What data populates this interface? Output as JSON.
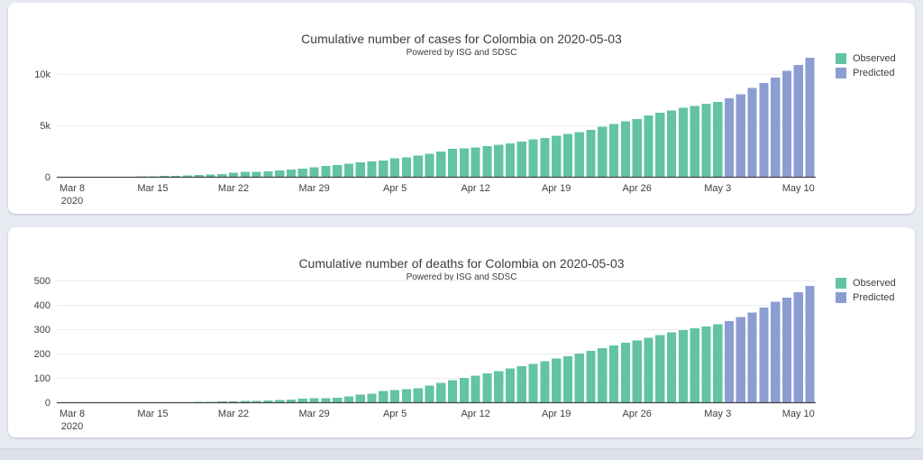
{
  "page_background": "#e7eaf1",
  "panel_background": "#ffffff",
  "colors": {
    "observed": "#62c4a0",
    "predicted": "#8c9dd2",
    "axis_line": "#444444",
    "gridline": "#ebecf0",
    "text": "#3d3d3d"
  },
  "chart_data": [
    {
      "type": "bar",
      "title": "Cumulative number of cases for Colombia on 2020-05-03",
      "subtitle": "Powered by ISG and SDSC",
      "xlabel": "",
      "ylabel": "",
      "ylim": [
        0,
        12000
      ],
      "grid": true,
      "legend_position": "top-right",
      "y_ticks": [
        {
          "label": "0",
          "value": 0
        },
        {
          "label": "5k",
          "value": 5000
        },
        {
          "label": "10k",
          "value": 10000
        }
      ],
      "x_ticks": [
        {
          "label": "Mar 8",
          "sub": "2020",
          "day": 0
        },
        {
          "label": "Mar 15",
          "day": 7
        },
        {
          "label": "Mar 22",
          "day": 14
        },
        {
          "label": "Mar 29",
          "day": 21
        },
        {
          "label": "Apr 5",
          "day": 28
        },
        {
          "label": "Apr 12",
          "day": 35
        },
        {
          "label": "Apr 19",
          "day": 42
        },
        {
          "label": "Apr 26",
          "day": 49
        },
        {
          "label": "May 3",
          "day": 56
        },
        {
          "label": "May 10",
          "day": 63
        }
      ],
      "series": [
        {
          "name": "Observed",
          "color": "#62c4a0",
          "start_date": "2020-03-08",
          "end_date": "2020-05-03",
          "dates": [
            "2020-03-08",
            "2020-03-09",
            "2020-03-10",
            "2020-03-11",
            "2020-03-12",
            "2020-03-13",
            "2020-03-14",
            "2020-03-15",
            "2020-03-16",
            "2020-03-17",
            "2020-03-18",
            "2020-03-19",
            "2020-03-20",
            "2020-03-21",
            "2020-03-22",
            "2020-03-23",
            "2020-03-24",
            "2020-03-25",
            "2020-03-26",
            "2020-03-27",
            "2020-03-28",
            "2020-03-29",
            "2020-03-30",
            "2020-03-31",
            "2020-04-01",
            "2020-04-02",
            "2020-04-03",
            "2020-04-04",
            "2020-04-05",
            "2020-04-06",
            "2020-04-07",
            "2020-04-08",
            "2020-04-09",
            "2020-04-10",
            "2020-04-11",
            "2020-04-12",
            "2020-04-13",
            "2020-04-14",
            "2020-04-15",
            "2020-04-16",
            "2020-04-17",
            "2020-04-18",
            "2020-04-19",
            "2020-04-20",
            "2020-04-21",
            "2020-04-22",
            "2020-04-23",
            "2020-04-24",
            "2020-04-25",
            "2020-04-26",
            "2020-04-27",
            "2020-04-28",
            "2020-04-29",
            "2020-04-30",
            "2020-05-01",
            "2020-05-02",
            "2020-05-03"
          ],
          "values": [
            1,
            3,
            9,
            13,
            22,
            34,
            54,
            65,
            93,
            102,
            128,
            196,
            231,
            277,
            378,
            470,
            491,
            539,
            608,
            702,
            798,
            906,
            1065,
            1161,
            1267,
            1406,
            1485,
            1579,
            1780,
            1871,
            2054,
            2223,
            2473,
            2709,
            2776,
            2852,
            2979,
            3105,
            3233,
            3439,
            3621,
            3792,
            3977,
            4149,
            4356,
            4561,
            4881,
            5142,
            5379,
            5597,
            5949,
            6211,
            6465,
            6710,
            6900,
            7090,
            7285
          ]
        },
        {
          "name": "Predicted",
          "color": "#8c9dd2",
          "start_date": "2020-05-04",
          "end_date": "2020-05-11",
          "dates": [
            "2020-05-04",
            "2020-05-05",
            "2020-05-06",
            "2020-05-07",
            "2020-05-08",
            "2020-05-09",
            "2020-05-10",
            "2020-05-11"
          ],
          "values": [
            7650,
            8040,
            8650,
            9140,
            9630,
            10310,
            10890,
            11560
          ]
        }
      ]
    },
    {
      "type": "bar",
      "title": "Cumulative number of deaths for Colombia on 2020-05-03",
      "subtitle": "Powered by ISG and SDSC",
      "xlabel": "",
      "ylabel": "",
      "ylim": [
        0,
        500
      ],
      "grid": true,
      "legend_position": "top-right",
      "y_ticks": [
        {
          "label": "0",
          "value": 0
        },
        {
          "label": "100",
          "value": 100
        },
        {
          "label": "200",
          "value": 200
        },
        {
          "label": "300",
          "value": 300
        },
        {
          "label": "400",
          "value": 400
        },
        {
          "label": "500",
          "value": 500
        }
      ],
      "x_ticks": [
        {
          "label": "Mar 8",
          "sub": "2020",
          "day": 0
        },
        {
          "label": "Mar 15",
          "day": 7
        },
        {
          "label": "Mar 22",
          "day": 14
        },
        {
          "label": "Mar 29",
          "day": 21
        },
        {
          "label": "Apr 5",
          "day": 28
        },
        {
          "label": "Apr 12",
          "day": 35
        },
        {
          "label": "Apr 19",
          "day": 42
        },
        {
          "label": "Apr 26",
          "day": 49
        },
        {
          "label": "May 3",
          "day": 56
        },
        {
          "label": "May 10",
          "day": 63
        }
      ],
      "series": [
        {
          "name": "Observed",
          "color": "#62c4a0",
          "start_date": "2020-03-08",
          "end_date": "2020-05-03",
          "dates": [
            "2020-03-08",
            "2020-03-09",
            "2020-03-10",
            "2020-03-11",
            "2020-03-12",
            "2020-03-13",
            "2020-03-14",
            "2020-03-15",
            "2020-03-16",
            "2020-03-17",
            "2020-03-18",
            "2020-03-19",
            "2020-03-20",
            "2020-03-21",
            "2020-03-22",
            "2020-03-23",
            "2020-03-24",
            "2020-03-25",
            "2020-03-26",
            "2020-03-27",
            "2020-03-28",
            "2020-03-29",
            "2020-03-30",
            "2020-03-31",
            "2020-04-01",
            "2020-04-02",
            "2020-04-03",
            "2020-04-04",
            "2020-04-05",
            "2020-04-06",
            "2020-04-07",
            "2020-04-08",
            "2020-04-09",
            "2020-04-10",
            "2020-04-11",
            "2020-04-12",
            "2020-04-13",
            "2020-04-14",
            "2020-04-15",
            "2020-04-16",
            "2020-04-17",
            "2020-04-18",
            "2020-04-19",
            "2020-04-20",
            "2020-04-21",
            "2020-04-22",
            "2020-04-23",
            "2020-04-24",
            "2020-04-25",
            "2020-04-26",
            "2020-04-27",
            "2020-04-28",
            "2020-04-29",
            "2020-04-30",
            "2020-05-01",
            "2020-05-02",
            "2020-05-03"
          ],
          "values": [
            0,
            0,
            0,
            0,
            0,
            0,
            0,
            0,
            1,
            1,
            1,
            2,
            2,
            3,
            4,
            5,
            6,
            7,
            10,
            12,
            14,
            16,
            17,
            19,
            25,
            32,
            35,
            46,
            50,
            54,
            57,
            69,
            80,
            90,
            100,
            109,
            119,
            127,
            138,
            149,
            158,
            168,
            179,
            189,
            200,
            211,
            222,
            233,
            244,
            253,
            265,
            276,
            287,
            296,
            303,
            311,
            320
          ]
        },
        {
          "name": "Predicted",
          "color": "#8c9dd2",
          "start_date": "2020-05-04",
          "end_date": "2020-05-11",
          "dates": [
            "2020-05-04",
            "2020-05-05",
            "2020-05-06",
            "2020-05-07",
            "2020-05-08",
            "2020-05-09",
            "2020-05-10",
            "2020-05-11"
          ],
          "values": [
            334,
            350,
            369,
            389,
            413,
            430,
            452,
            477
          ]
        }
      ]
    }
  ]
}
